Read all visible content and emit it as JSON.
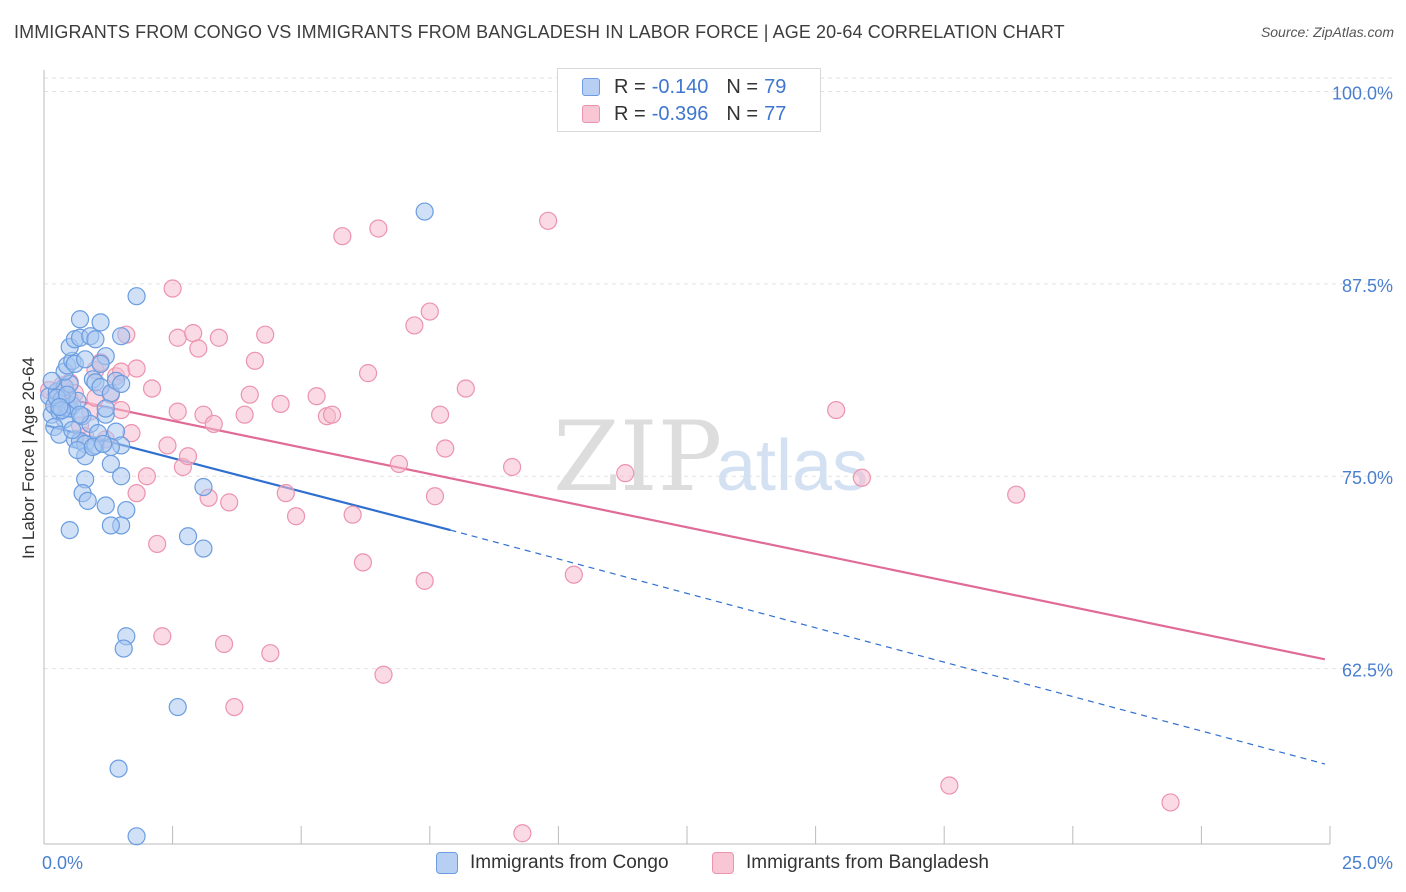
{
  "title": "IMMIGRANTS FROM CONGO VS IMMIGRANTS FROM BANGLADESH IN LABOR FORCE | AGE 20-64 CORRELATION CHART",
  "source": "Source: ZipAtlas.com",
  "watermark": {
    "zip": "ZIP",
    "atlas": "atlas"
  },
  "colors": {
    "congo_fill": "#a8c6f0",
    "congo_stroke": "#6b9de0",
    "congo_line": "#2f6fd0",
    "bangladesh_fill": "#f6bccd",
    "bangladesh_stroke": "#ec93ae",
    "bangladesh_line": "#e06b97",
    "axis_text": "#4a7fd0",
    "grid": "#e2e2e2"
  },
  "legend": {
    "rows": [
      {
        "r_label": "R =",
        "r_value": "-0.140",
        "n_label": "N =",
        "n_value": "79"
      },
      {
        "r_label": "R =",
        "r_value": "-0.396",
        "n_label": "N =",
        "n_value": "77"
      }
    ]
  },
  "bottom_legend": {
    "congo": "Immigrants from Congo",
    "bangladesh": "Immigrants from Bangladesh"
  },
  "chart_data": {
    "type": "scatter",
    "title": "IMMIGRANTS FROM CONGO VS IMMIGRANTS FROM BANGLADESH IN LABOR FORCE | AGE 20-64 CORRELATION CHART",
    "xlabel": "",
    "ylabel": "In Labor Force | Age 20-64",
    "xlim": [
      0,
      25
    ],
    "ylim": [
      51.1,
      101.4
    ],
    "x_ticks": [
      "0.0%",
      "25.0%"
    ],
    "y_ticks": [
      {
        "value": 100.0,
        "label": "100.0%"
      },
      {
        "value": 87.5,
        "label": "87.5%"
      },
      {
        "value": 75.0,
        "label": "75.0%"
      },
      {
        "value": 62.5,
        "label": "62.5%"
      }
    ],
    "grid": true,
    "legend_position": "top-center",
    "series": [
      {
        "name": "Immigrants from Congo",
        "r": -0.14,
        "n": 79,
        "trend": {
          "x_start": 0.05,
          "y_start": 78.3,
          "x_solid_end": 7.9,
          "y_solid_end": 71.5,
          "x_end": 24.9,
          "y_end": 56.3
        },
        "points": [
          [
            0.1,
            80.2
          ],
          [
            0.15,
            79.0
          ],
          [
            0.2,
            79.6
          ],
          [
            0.25,
            80.5
          ],
          [
            0.3,
            79.2
          ],
          [
            0.35,
            80.0
          ],
          [
            0.4,
            78.7
          ],
          [
            0.45,
            79.4
          ],
          [
            0.2,
            78.2
          ],
          [
            0.3,
            77.7
          ],
          [
            0.4,
            80.8
          ],
          [
            0.5,
            81.0
          ],
          [
            0.5,
            79.4
          ],
          [
            0.55,
            79.6
          ],
          [
            0.6,
            77.4
          ],
          [
            0.7,
            77.3
          ],
          [
            0.75,
            78.9
          ],
          [
            0.8,
            77.1
          ],
          [
            0.8,
            76.3
          ],
          [
            0.8,
            74.8
          ],
          [
            0.75,
            73.9
          ],
          [
            0.85,
            73.4
          ],
          [
            0.5,
            71.5
          ],
          [
            0.4,
            81.8
          ],
          [
            0.45,
            82.2
          ],
          [
            0.55,
            82.5
          ],
          [
            0.6,
            82.3
          ],
          [
            0.5,
            83.4
          ],
          [
            0.6,
            83.9
          ],
          [
            0.7,
            84.0
          ],
          [
            0.8,
            82.6
          ],
          [
            0.9,
            84.1
          ],
          [
            0.7,
            85.2
          ],
          [
            0.95,
            81.3
          ],
          [
            1.0,
            77.0
          ],
          [
            1.0,
            83.9
          ],
          [
            1.1,
            85.0
          ],
          [
            1.2,
            82.8
          ],
          [
            1.1,
            82.3
          ],
          [
            1.2,
            79.0
          ],
          [
            1.0,
            81.1
          ],
          [
            1.1,
            80.8
          ],
          [
            1.3,
            75.8
          ],
          [
            1.4,
            77.9
          ],
          [
            1.5,
            77.0
          ],
          [
            1.5,
            75.0
          ],
          [
            1.6,
            72.8
          ],
          [
            1.5,
            71.8
          ],
          [
            1.3,
            71.8
          ],
          [
            1.2,
            73.1
          ],
          [
            1.3,
            80.4
          ],
          [
            1.4,
            81.2
          ],
          [
            1.5,
            81.0
          ],
          [
            1.5,
            84.1
          ],
          [
            1.2,
            79.4
          ],
          [
            1.3,
            76.9
          ],
          [
            1.6,
            64.6
          ],
          [
            1.55,
            63.8
          ],
          [
            1.45,
            56.0
          ],
          [
            1.8,
            51.6
          ],
          [
            1.8,
            86.7
          ],
          [
            2.6,
            60.0
          ],
          [
            2.8,
            71.1
          ],
          [
            3.1,
            70.3
          ],
          [
            3.1,
            74.3
          ],
          [
            7.4,
            92.2
          ],
          [
            0.25,
            80.1
          ],
          [
            0.35,
            79.3
          ],
          [
            0.65,
            79.9
          ],
          [
            0.9,
            78.4
          ],
          [
            1.05,
            77.8
          ],
          [
            0.15,
            81.2
          ],
          [
            0.45,
            80.3
          ],
          [
            0.55,
            78.0
          ],
          [
            0.65,
            76.7
          ],
          [
            0.3,
            79.5
          ],
          [
            0.7,
            79.0
          ],
          [
            0.95,
            76.9
          ],
          [
            1.15,
            77.1
          ]
        ]
      },
      {
        "name": "Immigrants from Bangladesh",
        "r": -0.396,
        "n": 77,
        "trend": {
          "x_start": 0.05,
          "y_start": 80.3,
          "x_end": 24.9,
          "y_end": 63.1
        },
        "points": [
          [
            0.1,
            80.6
          ],
          [
            0.2,
            79.6
          ],
          [
            0.3,
            80.2
          ],
          [
            0.4,
            79.8
          ],
          [
            0.5,
            81.1
          ],
          [
            0.5,
            80.0
          ],
          [
            0.6,
            80.4
          ],
          [
            0.7,
            78.3
          ],
          [
            0.8,
            77.6
          ],
          [
            0.9,
            79.2
          ],
          [
            1.0,
            80.1
          ],
          [
            1.0,
            81.9
          ],
          [
            1.1,
            82.4
          ],
          [
            1.2,
            77.4
          ],
          [
            1.3,
            80.3
          ],
          [
            1.4,
            81.5
          ],
          [
            1.5,
            81.8
          ],
          [
            1.5,
            79.3
          ],
          [
            1.6,
            84.2
          ],
          [
            1.7,
            77.8
          ],
          [
            1.8,
            82.0
          ],
          [
            1.8,
            73.9
          ],
          [
            2.0,
            75.0
          ],
          [
            2.1,
            80.7
          ],
          [
            2.2,
            70.6
          ],
          [
            2.3,
            64.6
          ],
          [
            2.4,
            77.0
          ],
          [
            2.5,
            87.2
          ],
          [
            2.6,
            79.2
          ],
          [
            2.6,
            84.0
          ],
          [
            2.7,
            75.6
          ],
          [
            2.8,
            76.3
          ],
          [
            2.9,
            84.3
          ],
          [
            3.0,
            83.3
          ],
          [
            3.1,
            79.0
          ],
          [
            3.2,
            73.6
          ],
          [
            3.3,
            78.4
          ],
          [
            3.4,
            84.0
          ],
          [
            3.5,
            64.1
          ],
          [
            3.6,
            73.3
          ],
          [
            3.7,
            60.0
          ],
          [
            3.9,
            79.0
          ],
          [
            4.0,
            80.3
          ],
          [
            4.1,
            82.5
          ],
          [
            4.3,
            84.2
          ],
          [
            4.4,
            63.5
          ],
          [
            4.6,
            79.7
          ],
          [
            4.7,
            73.9
          ],
          [
            4.9,
            72.4
          ],
          [
            5.3,
            80.2
          ],
          [
            5.5,
            78.9
          ],
          [
            5.6,
            79.0
          ],
          [
            5.8,
            90.6
          ],
          [
            6.0,
            72.5
          ],
          [
            6.2,
            69.4
          ],
          [
            6.3,
            81.7
          ],
          [
            6.5,
            91.1
          ],
          [
            6.6,
            62.1
          ],
          [
            6.9,
            75.8
          ],
          [
            7.2,
            84.8
          ],
          [
            7.4,
            68.2
          ],
          [
            7.5,
            85.7
          ],
          [
            7.6,
            73.7
          ],
          [
            7.7,
            79.0
          ],
          [
            7.8,
            76.8
          ],
          [
            8.2,
            80.7
          ],
          [
            9.1,
            75.6
          ],
          [
            9.3,
            51.8
          ],
          [
            9.8,
            91.6
          ],
          [
            10.3,
            68.6
          ],
          [
            11.3,
            75.2
          ],
          [
            15.4,
            79.3
          ],
          [
            15.9,
            74.9
          ],
          [
            17.6,
            54.9
          ],
          [
            18.9,
            73.8
          ],
          [
            21.9,
            53.8
          ],
          [
            0.35,
            80.9
          ]
        ]
      }
    ]
  }
}
